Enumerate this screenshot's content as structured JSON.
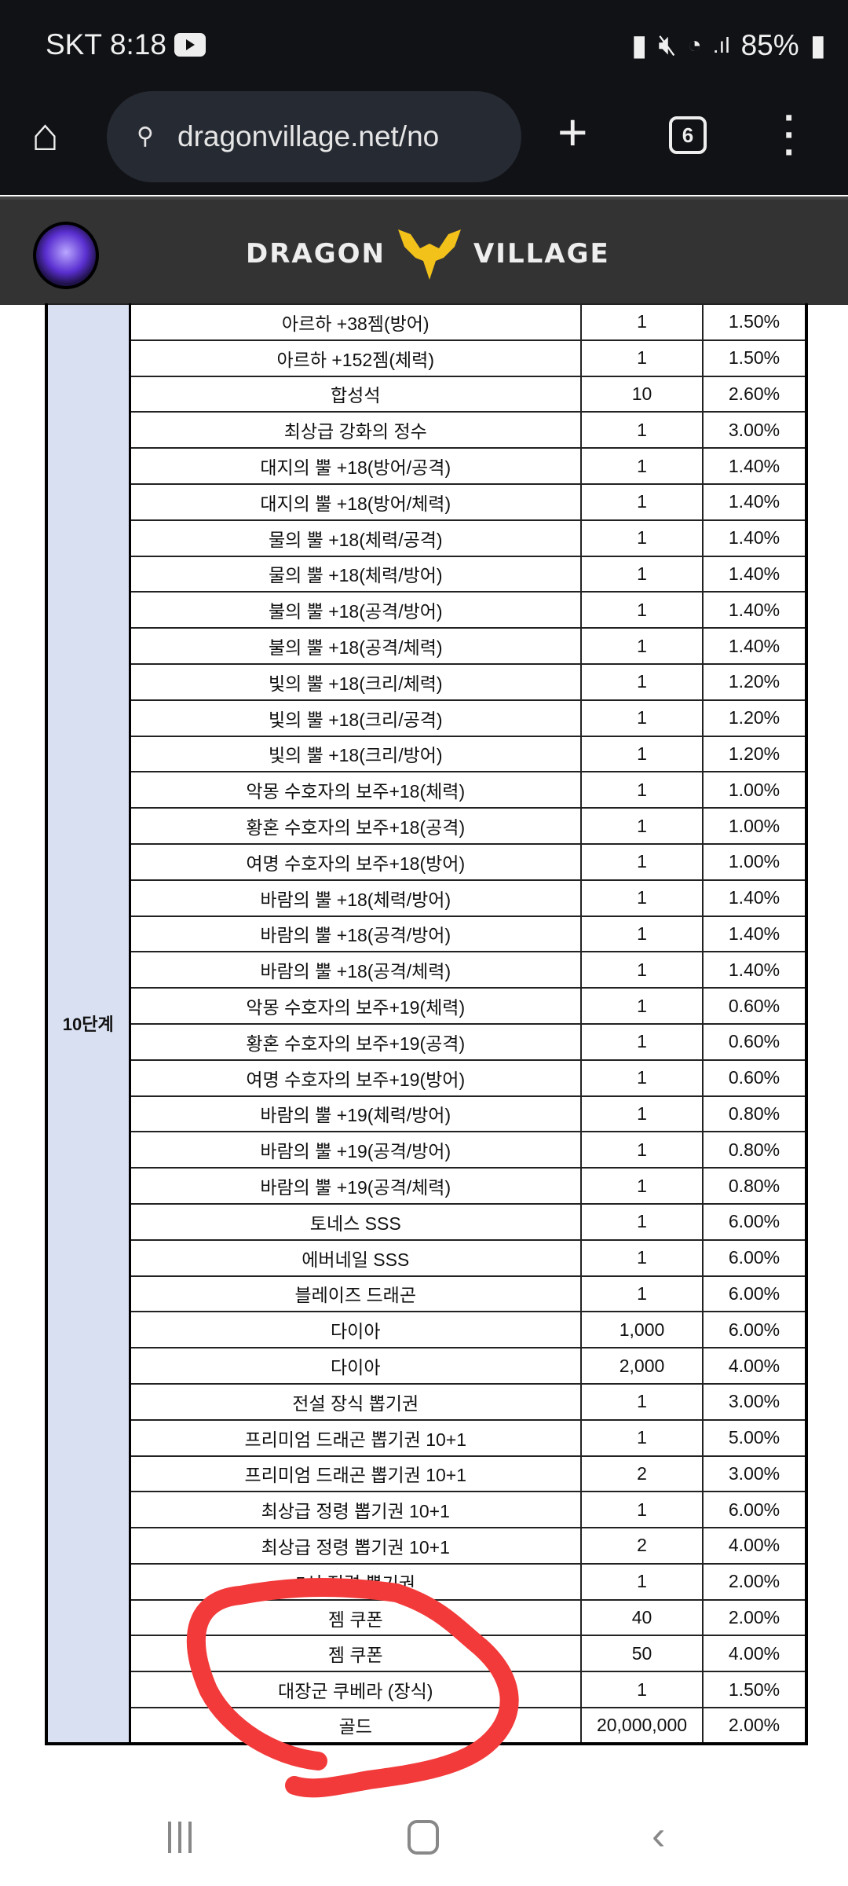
{
  "status_bar": {
    "carrier": "SKT",
    "time": "8:18",
    "battery": "85%"
  },
  "browser": {
    "url": "dragonvillage.net/no",
    "tab_count": "6"
  },
  "site": {
    "logo_text_left": "DRAGON",
    "logo_text_right": "VILLAGE"
  },
  "table": {
    "stage_label": "10단계",
    "rows": [
      {
        "item": "아르하 +38젬(방어)",
        "qty": "1",
        "pct": "1.50%"
      },
      {
        "item": "아르하 +152젬(체력)",
        "qty": "1",
        "pct": "1.50%"
      },
      {
        "item": "합성석",
        "qty": "10",
        "pct": "2.60%"
      },
      {
        "item": "최상급 강화의 정수",
        "qty": "1",
        "pct": "3.00%"
      },
      {
        "item": "대지의 뿔 +18(방어/공격)",
        "qty": "1",
        "pct": "1.40%"
      },
      {
        "item": "대지의 뿔 +18(방어/체력)",
        "qty": "1",
        "pct": "1.40%"
      },
      {
        "item": "물의 뿔 +18(체력/공격)",
        "qty": "1",
        "pct": "1.40%"
      },
      {
        "item": "물의 뿔 +18(체력/방어)",
        "qty": "1",
        "pct": "1.40%"
      },
      {
        "item": "불의 뿔 +18(공격/방어)",
        "qty": "1",
        "pct": "1.40%"
      },
      {
        "item": "불의 뿔 +18(공격/체력)",
        "qty": "1",
        "pct": "1.40%"
      },
      {
        "item": "빛의 뿔 +18(크리/체력)",
        "qty": "1",
        "pct": "1.20%"
      },
      {
        "item": "빛의 뿔 +18(크리/공격)",
        "qty": "1",
        "pct": "1.20%"
      },
      {
        "item": "빛의 뿔 +18(크리/방어)",
        "qty": "1",
        "pct": "1.20%"
      },
      {
        "item": "악몽 수호자의 보주+18(체력)",
        "qty": "1",
        "pct": "1.00%"
      },
      {
        "item": "황혼 수호자의 보주+18(공격)",
        "qty": "1",
        "pct": "1.00%"
      },
      {
        "item": "여명 수호자의 보주+18(방어)",
        "qty": "1",
        "pct": "1.00%"
      },
      {
        "item": "바람의 뿔 +18(체력/방어)",
        "qty": "1",
        "pct": "1.40%"
      },
      {
        "item": "바람의 뿔 +18(공격/방어)",
        "qty": "1",
        "pct": "1.40%"
      },
      {
        "item": "바람의 뿔 +18(공격/체력)",
        "qty": "1",
        "pct": "1.40%"
      },
      {
        "item": "악몽 수호자의 보주+19(체력)",
        "qty": "1",
        "pct": "0.60%"
      },
      {
        "item": "황혼 수호자의 보주+19(공격)",
        "qty": "1",
        "pct": "0.60%"
      },
      {
        "item": "여명 수호자의 보주+19(방어)",
        "qty": "1",
        "pct": "0.60%"
      },
      {
        "item": "바람의 뿔 +19(체력/방어)",
        "qty": "1",
        "pct": "0.80%"
      },
      {
        "item": "바람의 뿔 +19(공격/방어)",
        "qty": "1",
        "pct": "0.80%"
      },
      {
        "item": "바람의 뿔 +19(공격/체력)",
        "qty": "1",
        "pct": "0.80%"
      },
      {
        "item": "토네스 SSS",
        "qty": "1",
        "pct": "6.00%"
      },
      {
        "item": "에버네일 SSS",
        "qty": "1",
        "pct": "6.00%"
      },
      {
        "item": "블레이즈 드래곤",
        "qty": "1",
        "pct": "6.00%"
      },
      {
        "item": "다이아",
        "qty": "1,000",
        "pct": "6.00%"
      },
      {
        "item": "다이아",
        "qty": "2,000",
        "pct": "4.00%"
      },
      {
        "item": "전설 장식 뽑기권",
        "qty": "1",
        "pct": "3.00%"
      },
      {
        "item": "프리미엄 드래곤 뽑기권 10+1",
        "qty": "1",
        "pct": "5.00%"
      },
      {
        "item": "프리미엄 드래곤 뽑기권 10+1",
        "qty": "2",
        "pct": "3.00%"
      },
      {
        "item": "최상급 정령 뽑기권 10+1",
        "qty": "1",
        "pct": "6.00%"
      },
      {
        "item": "최상급 정령 뽑기권 10+1",
        "qty": "2",
        "pct": "4.00%"
      },
      {
        "item": "5성 정령 뽑기권",
        "qty": "1",
        "pct": "2.00%"
      },
      {
        "item": "젬 쿠폰",
        "qty": "40",
        "pct": "2.00%"
      },
      {
        "item": "젬 쿠폰",
        "qty": "50",
        "pct": "4.00%"
      },
      {
        "item": "대장군 쿠베라 (장식)",
        "qty": "1",
        "pct": "1.50%"
      },
      {
        "item": "골드",
        "qty": "20,000,000",
        "pct": "2.00%"
      }
    ]
  },
  "colors": {
    "annotation": "#f23a3a",
    "stage_cell": "#d9e0f2",
    "logo_accent": "#f2c21b"
  }
}
